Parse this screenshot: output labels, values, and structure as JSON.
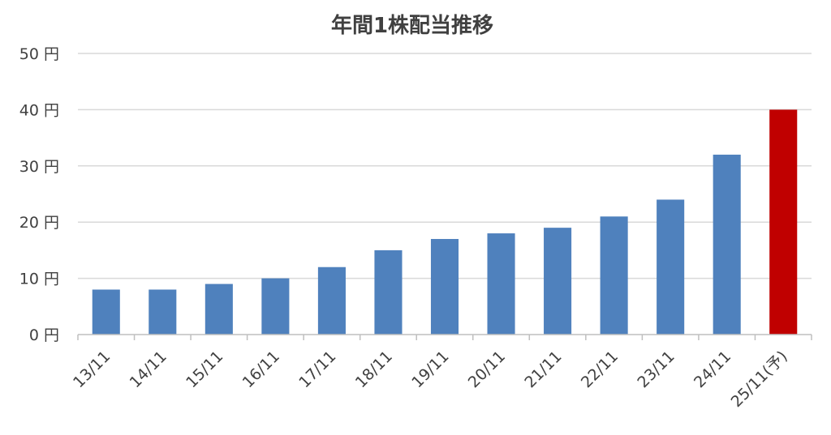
{
  "chart_data": {
    "type": "bar",
    "title": "年間1株配当推移",
    "xlabel": "",
    "ylabel": "",
    "categories": [
      "13/11",
      "14/11",
      "15/11",
      "16/11",
      "17/11",
      "18/11",
      "19/11",
      "20/11",
      "21/11",
      "22/11",
      "23/11",
      "24/11",
      "25/11(予)"
    ],
    "values": [
      8,
      8,
      9,
      10,
      12,
      15,
      17,
      18,
      19,
      21,
      24,
      32,
      40
    ],
    "ylim": [
      0,
      50
    ],
    "yticks": [
      {
        "value": 0,
        "label": "0 円"
      },
      {
        "value": 10,
        "label": "10 円"
      },
      {
        "value": 20,
        "label": "20 円"
      },
      {
        "value": 30,
        "label": "30 円"
      },
      {
        "value": 40,
        "label": "40 円"
      },
      {
        "value": 50,
        "label": "50 円"
      }
    ],
    "grid": true,
    "legend": "none",
    "colors": {
      "bar": "#4f81bd",
      "forecast_bar": "#c00000"
    },
    "forecast_index": 12
  }
}
